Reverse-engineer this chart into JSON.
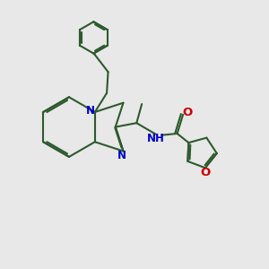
{
  "bg_color": "#e8e8e8",
  "line_color": "#2d5a2d",
  "N_color": "#0000cc",
  "O_color": "#cc0000",
  "bond_lw": 1.5,
  "font_size": 8.5,
  "fig_size": [
    3.0,
    3.0
  ],
  "dpi": 100,
  "xlim": [
    0,
    10
  ],
  "ylim": [
    0,
    10
  ]
}
